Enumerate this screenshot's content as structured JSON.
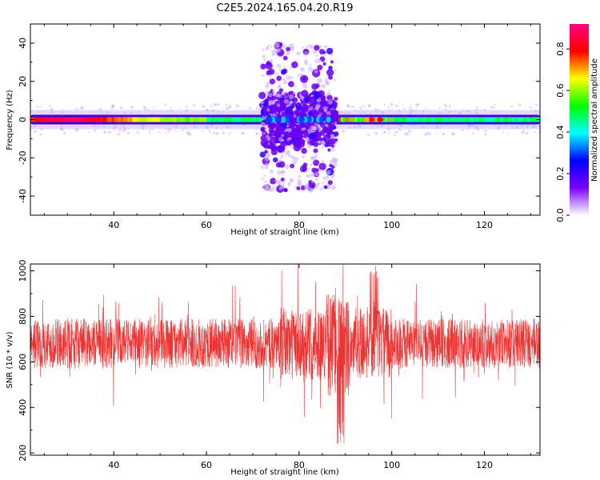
{
  "figure_title": "C2E5.2024.165.04.20.R19",
  "chart_data": [
    {
      "type": "heatmap",
      "title": "C2E5.2024.165.04.20.R19",
      "xlabel": "Height of straight line (km)",
      "ylabel": "Frequency (Hz)",
      "xlim": [
        22,
        132
      ],
      "ylim": [
        -50,
        50
      ],
      "xticks": [
        40,
        60,
        80,
        100,
        120
      ],
      "yticks": [
        40,
        20,
        0,
        -20,
        -40
      ],
      "colorbar": {
        "label": "Normalized spectral amplitude",
        "range": [
          0.0,
          0.92
        ],
        "ticks": [
          0.0,
          0.2,
          0.4,
          0.6,
          0.8
        ],
        "colormap": [
          "#ffffff",
          "#7b00ff",
          "#0000ff",
          "#00ffff",
          "#00ff00",
          "#ffff00",
          "#ff0000",
          "#ff0080"
        ]
      },
      "features": {
        "carrier_band": {
          "x_range": [
            22,
            132
          ],
          "center_hz": 0,
          "half_width_hz": 2.5,
          "peak_amplitude": 0.85
        },
        "scatter_region": {
          "x_range": [
            72,
            88
          ],
          "freq_range_hz": [
            -37,
            43
          ],
          "typical_amplitude": 0.2
        }
      }
    },
    {
      "type": "line",
      "xlabel": "Height of straight line (km)",
      "ylabel": "SNR (10 * v/v)",
      "xlim": [
        22,
        132
      ],
      "ylim": [
        190,
        1030
      ],
      "xticks": [
        40,
        60,
        80,
        100,
        120
      ],
      "yticks": [
        200,
        400,
        600,
        800,
        1000
      ],
      "series": [
        {
          "color": "#ee3333",
          "summary": {
            "typical_min": 480,
            "typical_max": 880,
            "mean": 680,
            "min": 200,
            "max": 1030
          }
        }
      ]
    }
  ]
}
